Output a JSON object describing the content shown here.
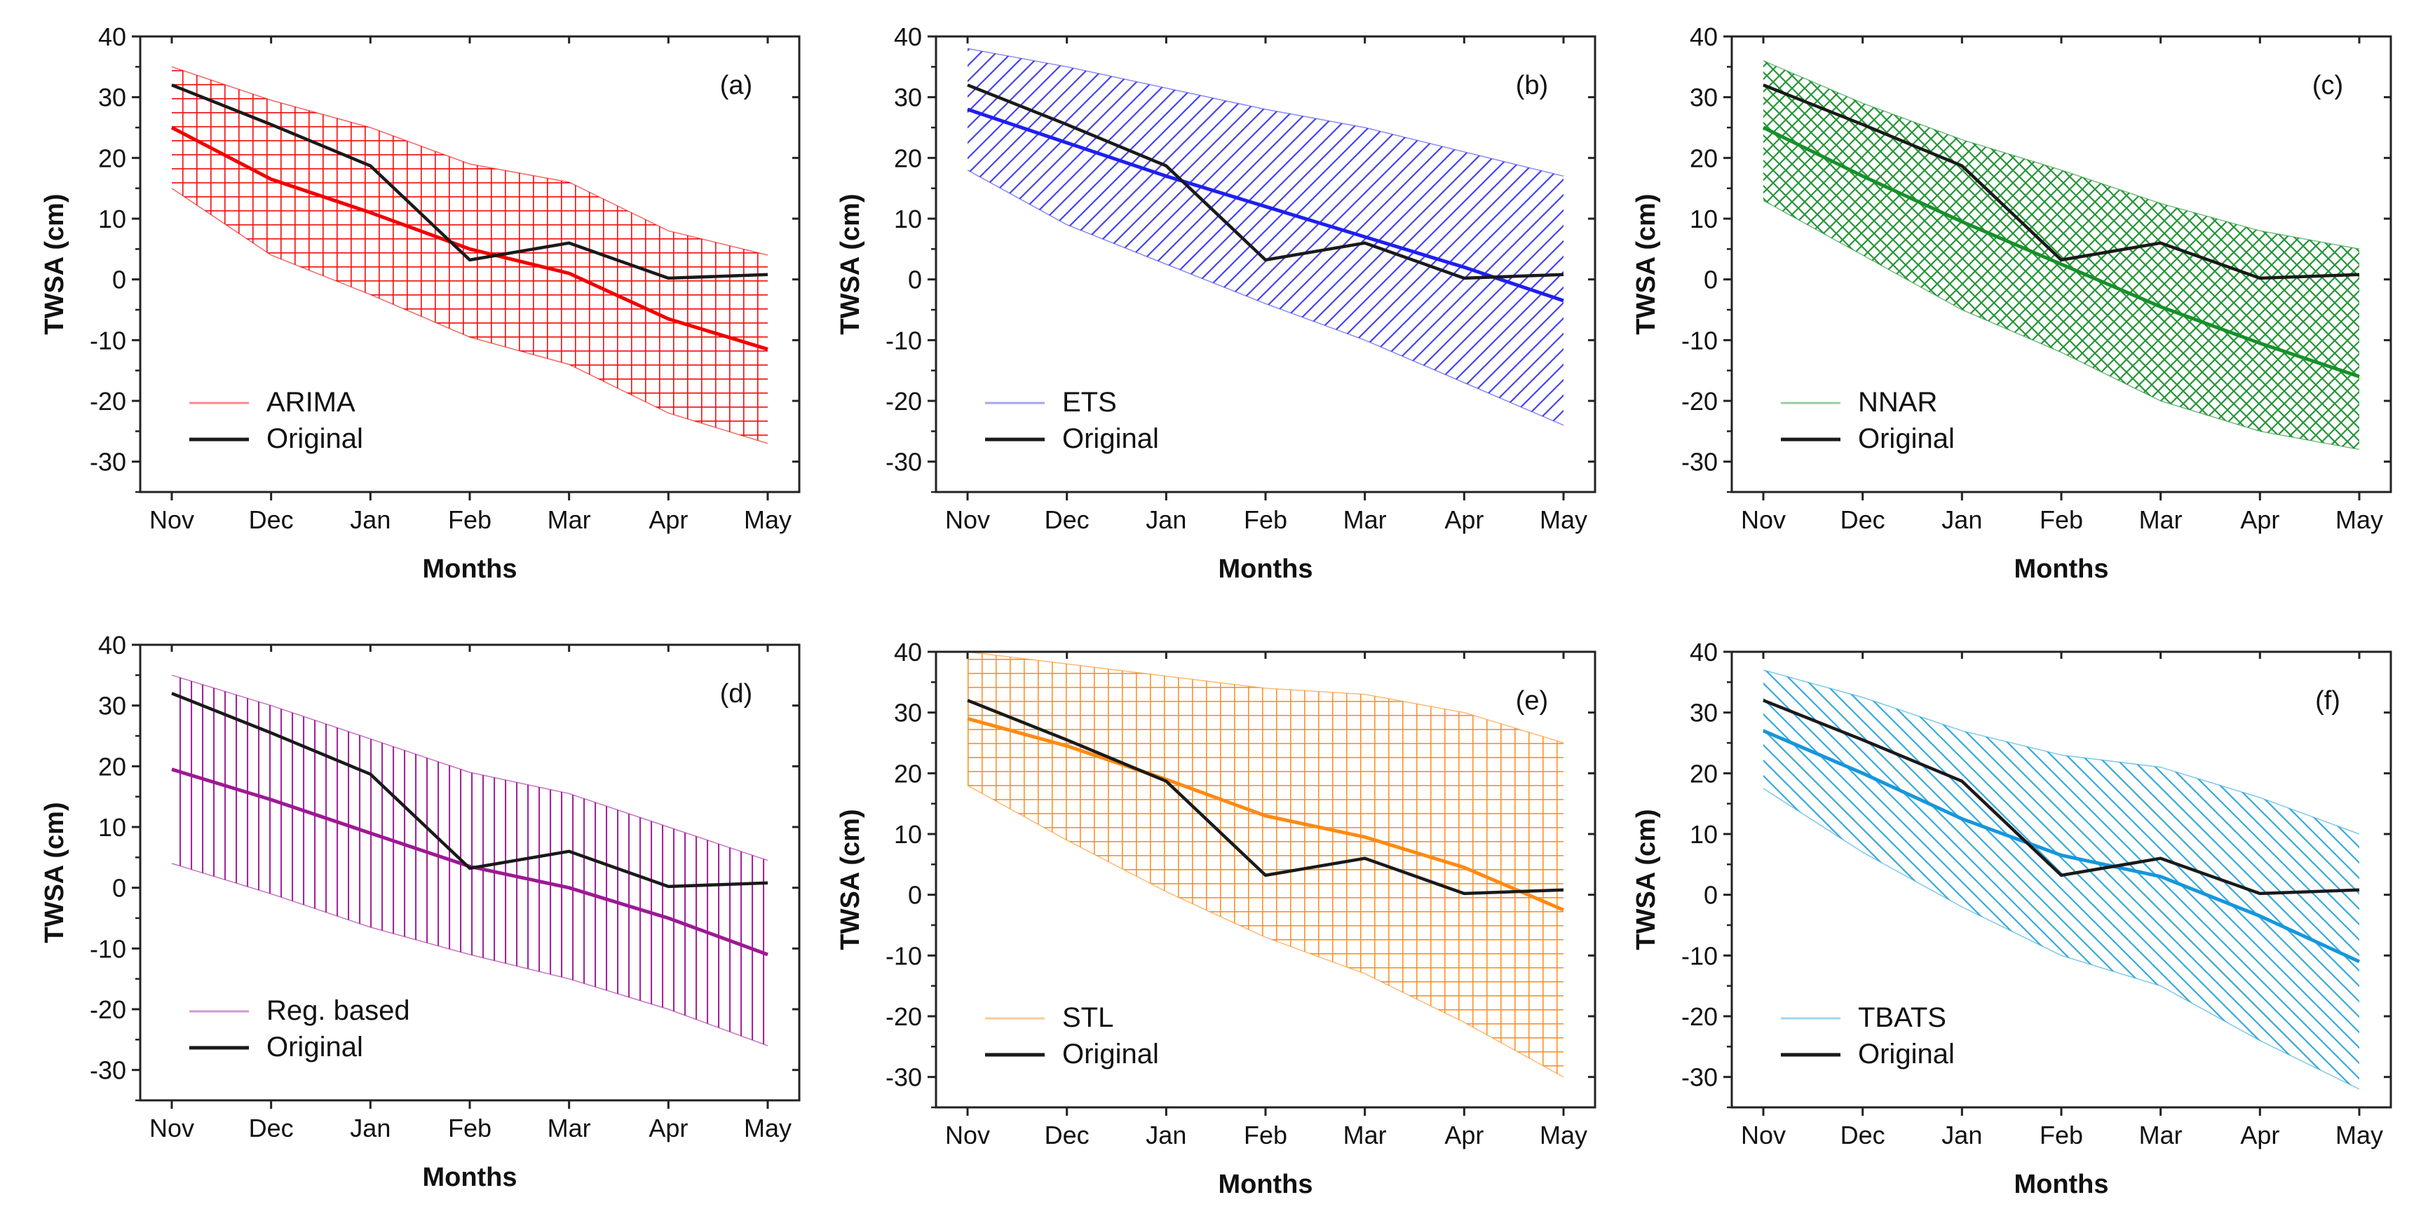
{
  "chart_data": [
    {
      "type": "line",
      "panel": "(a)",
      "categories": [
        "Nov",
        "Dec",
        "Jan",
        "Feb",
        "Mar",
        "Apr",
        "May"
      ],
      "ylim": [
        -35,
        40
      ],
      "yticks": [
        -30,
        -20,
        -10,
        0,
        10,
        20,
        30,
        40
      ],
      "xlabel": "Months",
      "ylabel": "TWSA (cm)",
      "band_color": "#f00000",
      "band_pattern": "grid",
      "series": [
        {
          "name": "ARIMA",
          "color": "#f00000",
          "values": [
            25,
            16.5,
            11,
            5,
            1,
            -6.5,
            -11.5
          ]
        },
        {
          "name": "Original",
          "color": "#1a1a1a",
          "values": [
            32,
            25.5,
            18.7,
            3.2,
            6,
            0.2,
            0.8
          ]
        }
      ],
      "band": {
        "upper": [
          35,
          29.5,
          25,
          19,
          16,
          8,
          4
        ],
        "lower": [
          15,
          4,
          -2.5,
          -9.5,
          -14,
          -22,
          -27
        ]
      },
      "legend": [
        "ARIMA",
        "Original"
      ]
    },
    {
      "type": "line",
      "panel": "(b)",
      "categories": [
        "Nov",
        "Dec",
        "Jan",
        "Feb",
        "Mar",
        "Apr",
        "May"
      ],
      "ylim": [
        -35,
        40
      ],
      "yticks": [
        -30,
        -20,
        -10,
        0,
        10,
        20,
        30,
        40
      ],
      "xlabel": "Months",
      "ylabel": "TWSA (cm)",
      "band_color": "#3a3aee",
      "band_pattern": "diag",
      "series": [
        {
          "name": "ETS",
          "color": "#1f1ff0",
          "values": [
            28,
            22.5,
            17,
            12,
            7,
            2,
            -3.5
          ]
        },
        {
          "name": "Original",
          "color": "#1a1a1a",
          "values": [
            32,
            25.5,
            18.7,
            3.2,
            6,
            0.2,
            0.8
          ]
        }
      ],
      "band": {
        "upper": [
          38,
          35,
          31.5,
          28,
          25,
          21,
          17
        ],
        "lower": [
          18,
          9,
          2.5,
          -4,
          -10,
          -17,
          -24
        ]
      },
      "legend": [
        "ETS",
        "Original"
      ]
    },
    {
      "type": "line",
      "panel": "(c)",
      "categories": [
        "Nov",
        "Dec",
        "Jan",
        "Feb",
        "Mar",
        "Apr",
        "May"
      ],
      "ylim": [
        -35,
        40
      ],
      "yticks": [
        -30,
        -20,
        -10,
        0,
        10,
        20,
        30,
        40
      ],
      "xlabel": "Months",
      "ylabel": "TWSA (cm)",
      "band_color": "#1a8f2e",
      "band_pattern": "crosshatch",
      "series": [
        {
          "name": "NNAR",
          "color": "#16902a",
          "values": [
            25,
            17,
            9.5,
            2.5,
            -4.5,
            -10.5,
            -16
          ]
        },
        {
          "name": "Original",
          "color": "#1a1a1a",
          "values": [
            32,
            25.5,
            18.7,
            3.2,
            6,
            0.2,
            0.8
          ]
        }
      ],
      "band": {
        "upper": [
          36,
          29,
          23,
          18,
          12.5,
          8,
          5
        ],
        "lower": [
          13,
          4,
          -5,
          -12,
          -20,
          -25,
          -28
        ]
      },
      "legend": [
        "NNAR",
        "Original"
      ]
    },
    {
      "type": "line",
      "panel": "(d)",
      "categories": [
        "Nov",
        "Dec",
        "Jan",
        "Feb",
        "Mar",
        "Apr",
        "May"
      ],
      "ylim": [
        -35,
        40
      ],
      "yticks": [
        -30,
        -20,
        -10,
        0,
        10,
        20,
        30,
        40
      ],
      "xlabel": "Months",
      "ylabel": "TWSA (cm)",
      "band_color": "#a0189a",
      "band_pattern": "vertical",
      "series": [
        {
          "name": "Reg. based",
          "color": "#9c1a93",
          "values": [
            19.5,
            14.5,
            9,
            3.5,
            0,
            -5,
            -11
          ]
        },
        {
          "name": "Original",
          "color": "#1a1a1a",
          "values": [
            32,
            25.5,
            18.7,
            3.2,
            6,
            0.2,
            0.8
          ]
        }
      ],
      "band": {
        "upper": [
          35,
          30,
          24.5,
          19,
          15.5,
          10,
          4.5
        ],
        "lower": [
          4,
          -1,
          -6.5,
          -11,
          -15,
          -20,
          -26
        ]
      },
      "legend": [
        "Reg. based",
        "Original"
      ]
    },
    {
      "type": "line",
      "panel": "(e)",
      "categories": [
        "Nov",
        "Dec",
        "Jan",
        "Feb",
        "Mar",
        "Apr",
        "May"
      ],
      "ylim": [
        -35,
        40
      ],
      "yticks": [
        -30,
        -20,
        -10,
        0,
        10,
        20,
        30,
        40
      ],
      "xlabel": "Months",
      "ylabel": "TWSA (cm)",
      "band_color": "#ff8c1a",
      "band_pattern": "grid",
      "series": [
        {
          "name": "STL",
          "color": "#ff8a14",
          "values": [
            29,
            24.5,
            19,
            13,
            9.5,
            4.5,
            -2.5
          ]
        },
        {
          "name": "Original",
          "color": "#1a1a1a",
          "values": [
            32,
            25.5,
            18.7,
            3.2,
            6,
            0.2,
            0.8
          ]
        }
      ],
      "band": {
        "upper": [
          40,
          38,
          36,
          34,
          33,
          30,
          25
        ],
        "lower": [
          18,
          9,
          0.5,
          -7,
          -13,
          -21,
          -30
        ]
      },
      "legend": [
        "STL",
        "Original"
      ]
    },
    {
      "type": "line",
      "panel": "(f)",
      "categories": [
        "Nov",
        "Dec",
        "Jan",
        "Feb",
        "Mar",
        "Apr",
        "May"
      ],
      "ylim": [
        -35,
        40
      ],
      "yticks": [
        -30,
        -20,
        -10,
        0,
        10,
        20,
        30,
        40
      ],
      "xlabel": "Months",
      "ylabel": "TWSA (cm)",
      "band_color": "#2aa4dc",
      "band_pattern": "diag-rev",
      "series": [
        {
          "name": "TBATS",
          "color": "#1696dc",
          "values": [
            27,
            20,
            12.5,
            6.5,
            3,
            -3.5,
            -11
          ]
        },
        {
          "name": "Original",
          "color": "#1a1a1a",
          "values": [
            32,
            25.5,
            18.7,
            3.2,
            6,
            0.2,
            0.8
          ]
        }
      ],
      "band": {
        "upper": [
          37,
          32.5,
          27,
          23,
          21,
          16,
          10
        ],
        "lower": [
          17.5,
          7,
          -2,
          -10,
          -15,
          -24,
          -32
        ]
      },
      "legend": [
        "TBATS",
        "Original"
      ]
    }
  ]
}
